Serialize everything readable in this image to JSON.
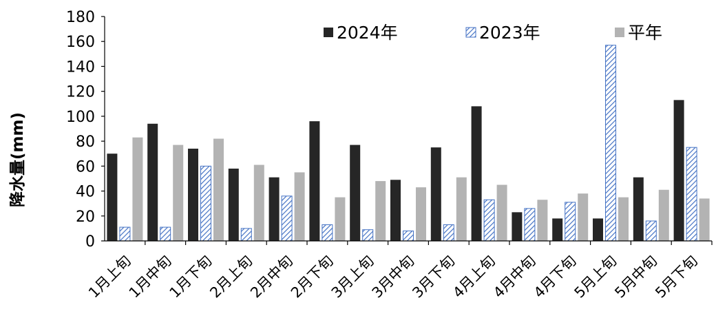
{
  "chart_data": {
    "type": "bar",
    "ylabel": "降水量(mm)",
    "xlabel": "",
    "ylim": [
      0,
      180
    ],
    "yticks": [
      0,
      20,
      40,
      60,
      80,
      100,
      120,
      140,
      160,
      180
    ],
    "categories": [
      "1月上旬",
      "1月中旬",
      "1月下旬",
      "2月上旬",
      "2月中旬",
      "2月下旬",
      "3月上旬",
      "3月中旬",
      "3月下旬",
      "4月上旬",
      "4月中旬",
      "4月下旬",
      "5月上旬",
      "5月中旬",
      "5月下旬"
    ],
    "legend_position": "top-right",
    "grid": false,
    "series": [
      {
        "name": "2024年",
        "color": "#262626",
        "pattern": "solid",
        "values": [
          70,
          94,
          74,
          58,
          51,
          96,
          77,
          49,
          75,
          108,
          23,
          18,
          18,
          51,
          113
        ]
      },
      {
        "name": "2023年",
        "color": "#4472c4",
        "pattern": "diagonal-hatch",
        "values": [
          11,
          11,
          60,
          10,
          36,
          13,
          9,
          8,
          13,
          33,
          26,
          31,
          157,
          16,
          75
        ]
      },
      {
        "name": "平年",
        "color": "#b3b3b3",
        "pattern": "solid",
        "values": [
          83,
          77,
          82,
          61,
          55,
          35,
          48,
          43,
          51,
          45,
          33,
          38,
          35,
          41,
          34
        ]
      }
    ]
  }
}
